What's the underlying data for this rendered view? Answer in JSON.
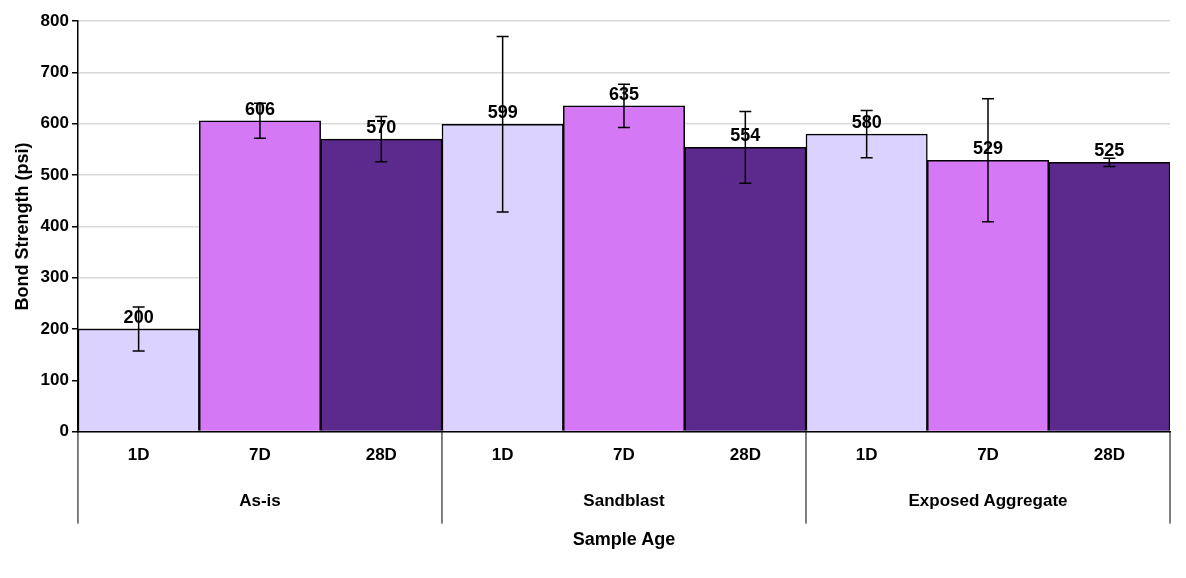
{
  "chart_data": {
    "type": "bar",
    "xlabel": "Sample Age",
    "ylabel": "Bond Strength (psi)",
    "categories": [
      "1D",
      "7D",
      "28D",
      "1D",
      "7D",
      "28D",
      "1D",
      "7D",
      "28D"
    ],
    "annotations": [
      "As-is",
      "Sandblast",
      "Exposed Aggregate"
    ],
    "values": [
      200,
      606,
      570,
      599,
      635,
      554,
      580,
      529,
      525
    ],
    "colors": [
      "#dcd2ff",
      "#d478f6",
      "#5c2a8c",
      "#dcd2ff",
      "#d478f6",
      "#5c2a8c",
      "#dcd2ff",
      "#d478f6",
      "#5c2a8c"
    ],
    "errors": [
      43,
      34,
      44,
      171,
      42,
      70,
      46,
      120,
      8
    ],
    "ylim": [
      0,
      800
    ],
    "yticks": [
      0,
      100,
      200,
      300,
      400,
      500,
      600,
      700,
      800
    ],
    "grid": "y",
    "data_labels": true,
    "legend": false
  }
}
